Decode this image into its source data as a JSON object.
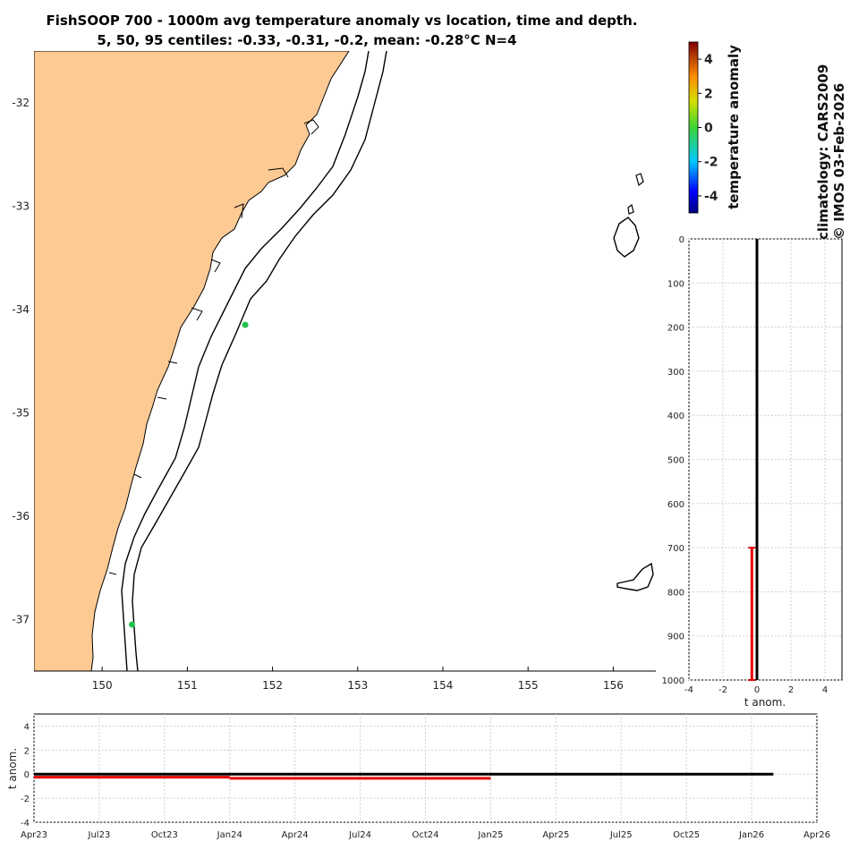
{
  "header": {
    "title_line1": "FishSOOP 700 - 1000m avg temperature anomaly vs location, time and depth.",
    "title_line2": "5, 50, 95 centiles: -0.33, -0.31, -0.2, mean: -0.28°C N=4"
  },
  "colorbar": {
    "label": "temperature anomaly",
    "ticks": [
      "4",
      "2",
      "0",
      "-2",
      "-4"
    ],
    "range": [
      -5,
      5
    ]
  },
  "credits": {
    "line1": "climatology: CARS2009",
    "line2": "© IMOS 03-Feb-2026"
  },
  "chart_data": [
    {
      "type": "scatter",
      "name": "map",
      "xlim": [
        149.2,
        156.5
      ],
      "ylim": [
        -37.5,
        -31.5
      ],
      "xticks": [
        "150",
        "151",
        "152",
        "153",
        "154",
        "155",
        "156"
      ],
      "yticks": [
        "-32",
        "-33",
        "-34",
        "-35",
        "-36",
        "-37"
      ],
      "points": [
        {
          "lon": 151.68,
          "lat": -34.15,
          "anomaly": -0.3
        },
        {
          "lon": 150.35,
          "lat": -37.05,
          "anomaly": -0.3
        }
      ]
    },
    {
      "type": "line",
      "name": "depth-profile",
      "xlabel": "t anom.",
      "xlim": [
        -4,
        5
      ],
      "ylim": [
        0,
        1000
      ],
      "xticks": [
        "-4",
        "-2",
        "0",
        "2",
        "4"
      ],
      "yticks": [
        "0",
        "100",
        "200",
        "300",
        "400",
        "500",
        "600",
        "700",
        "800",
        "900",
        "1000"
      ],
      "zero_line": 0,
      "anomaly_segment": {
        "value": -0.3,
        "depth_top": 700,
        "depth_bottom": 1000
      }
    },
    {
      "type": "line",
      "name": "time-series",
      "ylabel": "t anom.",
      "ylim": [
        -4,
        5
      ],
      "yticks": [
        "4",
        "2",
        "0",
        "-2",
        "-4"
      ],
      "xticks": [
        "Apr23",
        "Jul23",
        "Oct23",
        "Jan24",
        "Apr24",
        "Jul24",
        "Oct24",
        "Jan25",
        "Apr25",
        "Jul25",
        "Oct25",
        "Jan26",
        "Apr26"
      ],
      "zero_line_end": "Feb26",
      "series": [
        {
          "name": "anomaly",
          "segments": [
            {
              "start": "Apr23",
              "end": "Jan24",
              "value": -0.25
            },
            {
              "start": "Jan24",
              "end": "Jan25",
              "value": -0.35
            }
          ]
        }
      ]
    }
  ]
}
